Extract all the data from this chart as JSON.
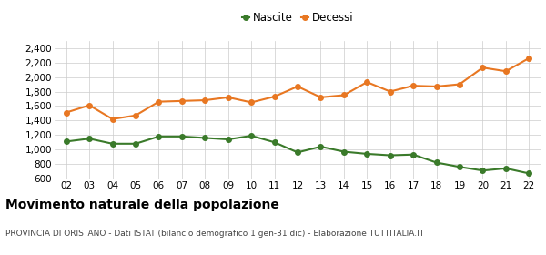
{
  "years": [
    "02",
    "03",
    "04",
    "05",
    "06",
    "07",
    "08",
    "09",
    "10",
    "11",
    "12",
    "13",
    "14",
    "15",
    "16",
    "17",
    "18",
    "19",
    "20",
    "21",
    "22"
  ],
  "nascite": [
    1110,
    1150,
    1080,
    1080,
    1180,
    1180,
    1160,
    1140,
    1190,
    1100,
    960,
    1040,
    970,
    940,
    920,
    930,
    820,
    760,
    710,
    740,
    670
  ],
  "decessi": [
    1510,
    1610,
    1420,
    1470,
    1660,
    1670,
    1680,
    1720,
    1650,
    1730,
    1870,
    1720,
    1750,
    1930,
    1800,
    1880,
    1870,
    1900,
    2130,
    2080,
    2260
  ],
  "nascite_color": "#3a7a2a",
  "decessi_color": "#e87722",
  "bg_color": "#ffffff",
  "grid_color": "#cccccc",
  "title": "Movimento naturale della popolazione",
  "subtitle": "PROVINCIA DI ORISTANO - Dati ISTAT (bilancio demografico 1 gen-31 dic) - Elaborazione TUTTITALIA.IT",
  "legend_nascite": "Nascite",
  "legend_decessi": "Decessi",
  "ylim": [
    600,
    2500
  ],
  "yticks": [
    600,
    800,
    1000,
    1200,
    1400,
    1600,
    1800,
    2000,
    2200,
    2400
  ],
  "ytick_labels": [
    "600",
    "800",
    "1,000",
    "1,200",
    "1,400",
    "1,600",
    "1,800",
    "2,000",
    "2,200",
    "2,400"
  ],
  "marker_size": 4,
  "line_width": 1.5,
  "title_fontsize": 10,
  "subtitle_fontsize": 6.5,
  "tick_fontsize": 7.5,
  "legend_fontsize": 8.5
}
